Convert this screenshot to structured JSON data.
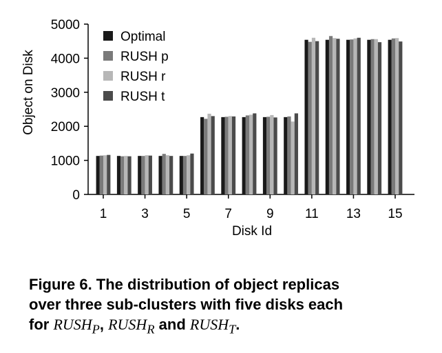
{
  "chart_data": {
    "type": "bar",
    "title": "",
    "xlabel": "Disk Id",
    "ylabel": "Object on Disk",
    "ylim": [
      0,
      5000
    ],
    "y_ticks": [
      "0",
      "1000",
      "2000",
      "3000",
      "4000",
      "5000"
    ],
    "categories": [
      1,
      2,
      3,
      4,
      5,
      6,
      7,
      8,
      9,
      10,
      11,
      12,
      13,
      14,
      15
    ],
    "x_tick_labels": [
      "1",
      "3",
      "5",
      "7",
      "9",
      "11",
      "13",
      "15"
    ],
    "legend_position": "top-left",
    "grid": false,
    "series": [
      {
        "name": "Optimal",
        "color": "#1a1a1a",
        "values": [
          1130,
          1130,
          1130,
          1130,
          1130,
          2270,
          2270,
          2270,
          2270,
          2270,
          4540,
          4540,
          4540,
          4540,
          4540
        ]
      },
      {
        "name": "RUSH p",
        "color": "#7a7a7a",
        "values": [
          1140,
          1120,
          1130,
          1190,
          1130,
          2220,
          2280,
          2320,
          2280,
          2290,
          4480,
          4650,
          4550,
          4560,
          4580
        ]
      },
      {
        "name": "RUSH r",
        "color": "#b7b7b7",
        "values": [
          1150,
          1130,
          1150,
          1150,
          1150,
          2370,
          2300,
          2340,
          2330,
          2140,
          4600,
          4590,
          4580,
          4560,
          4590
        ]
      },
      {
        "name": "RUSH t",
        "color": "#4b4b4b",
        "values": [
          1160,
          1120,
          1140,
          1130,
          1200,
          2300,
          2290,
          2380,
          2260,
          2380,
          4500,
          4570,
          4600,
          4470,
          4490
        ]
      }
    ]
  },
  "caption": {
    "line1": "Figure 6. The distribution of object replicas",
    "line2": "over three sub-clusters with five disks each",
    "line3_prefix": "for ",
    "rush_p": "RUSH",
    "rush_p_sub": "P",
    "comma": ", ",
    "rush_r": "RUSH",
    "rush_r_sub": "R",
    "and": " and ",
    "rush_t": "RUSH",
    "rush_t_sub": "T",
    "period": "."
  }
}
